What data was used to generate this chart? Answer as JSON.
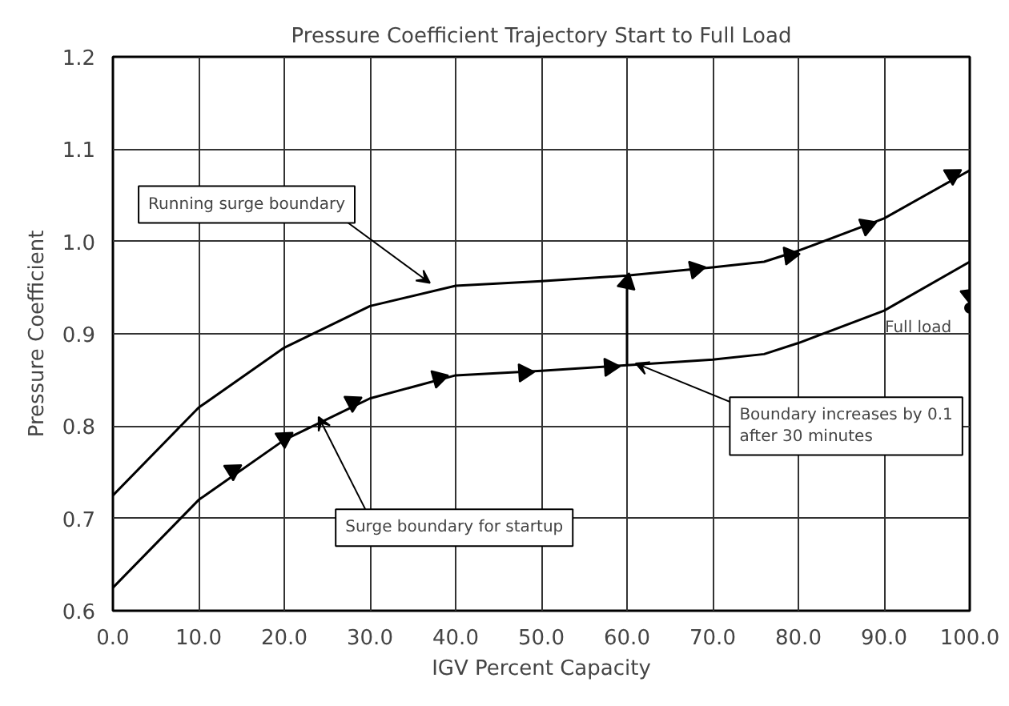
{
  "chart_data": {
    "type": "line",
    "title": "Pressure Coefficient Trajectory Start to Full Load",
    "xlabel": "IGV Percent Capacity",
    "ylabel": "Pressure Coefficient",
    "x": [
      0,
      10,
      20,
      30,
      40,
      50,
      60,
      70,
      76,
      80,
      90,
      100
    ],
    "series": [
      {
        "color": "#000000",
        "values": [
          0.725,
          0.82,
          0.885,
          0.93,
          0.952,
          0.957,
          0.963,
          0.972,
          0.978,
          0.99,
          1.025,
          1.077
        ]
      },
      {
        "color": "#000000",
        "values": [
          0.625,
          0.72,
          0.785,
          0.83,
          0.855,
          0.86,
          0.866,
          0.872,
          0.878,
          0.89,
          0.925,
          0.978
        ]
      },
      {
        "color": "#000000",
        "x": [
          60,
          60,
          80,
          100,
          100
        ],
        "values": [
          0.866,
          0.963,
          null,
          1.077,
          0.928
        ]
      },
      {
        "type": "scatter",
        "marker": "triangle",
        "color": "#000000",
        "x": [
          14,
          20,
          28,
          38,
          48,
          58,
          60,
          68,
          79,
          88,
          98,
          100
        ],
        "values": [
          0.752,
          0.787,
          0.826,
          0.852,
          0.858,
          0.864,
          0.955,
          0.97,
          0.985,
          1.017,
          1.072,
          0.942
        ]
      },
      {
        "type": "scatter",
        "marker": "circle",
        "color": "#000000",
        "x": [
          100
        ],
        "values": [
          0.928
        ]
      }
    ],
    "xlim": [
      0,
      100
    ],
    "ylim": [
      0.6,
      1.2
    ],
    "xticks": [
      {
        "value": 0,
        "label": "0.0"
      },
      {
        "value": 10,
        "label": "10.0"
      },
      {
        "value": 20,
        "label": "20.0"
      },
      {
        "value": 30,
        "label": "30.0"
      },
      {
        "value": 40,
        "label": "40.0"
      },
      {
        "value": 50,
        "label": "50.0"
      },
      {
        "value": 60,
        "label": "60.0"
      },
      {
        "value": 70,
        "label": "70.0"
      },
      {
        "value": 80,
        "label": "80.0"
      },
      {
        "value": 90,
        "label": "90.0"
      },
      {
        "value": 100,
        "label": "100.0"
      }
    ],
    "yticks": [
      {
        "value": 0.6,
        "label": "0.6"
      },
      {
        "value": 0.7,
        "label": "0.7"
      },
      {
        "value": 0.8,
        "label": "0.8"
      },
      {
        "value": 0.9,
        "label": "0.9"
      },
      {
        "value": 1,
        "label": "1.0"
      },
      {
        "value": 1.1,
        "label": "1.1"
      },
      {
        "value": 1.2,
        "label": "1.2"
      }
    ],
    "grid": true,
    "annotations": [
      {
        "text": "Running surge boundary",
        "x": 37,
        "y": 0.955
      },
      {
        "text": "Surge boundary for startup",
        "x": 24,
        "y": 0.81
      },
      {
        "text": "Boundary increases by 0.1\nafter 30 minutes",
        "x": 61,
        "y": 0.868
      },
      {
        "text": "Full load",
        "x": 100,
        "y": 0.928
      }
    ]
  }
}
